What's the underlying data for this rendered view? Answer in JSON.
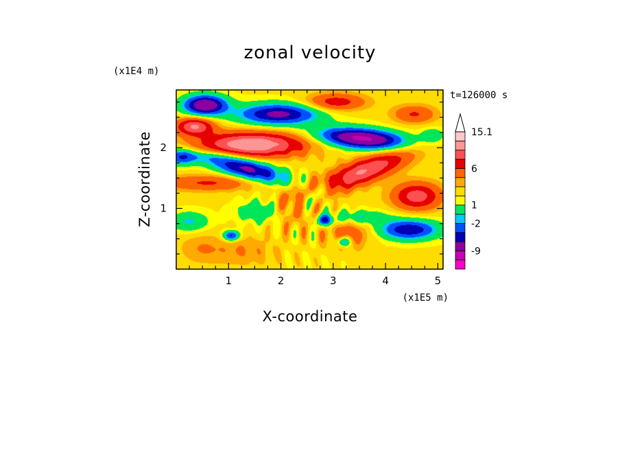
{
  "chart_data": {
    "type": "heatmap",
    "title": "zonal velocity",
    "xlabel": "X-coordinate",
    "ylabel": "Z-coordinate",
    "x_unit_label": "(x1E5 m)",
    "y_unit_label": "(x1E4 m)",
    "time_label": "t=126000 s",
    "xlim": [
      0,
      5.1
    ],
    "ylim": [
      0,
      2.95
    ],
    "x_ticks": [
      1,
      2,
      3,
      4,
      5
    ],
    "y_ticks": [
      1,
      2
    ],
    "x_tick_labels": [
      "1",
      "2",
      "3",
      "4",
      "5"
    ],
    "y_tick_labels": [
      "1",
      "2"
    ],
    "colorbar": {
      "labels": [
        "15.1",
        "6",
        "1",
        "-2",
        "-9"
      ],
      "levels": [
        -15,
        -12,
        -9,
        -6,
        -4,
        -2,
        -1,
        1,
        2,
        3,
        4,
        6,
        8,
        10,
        12.5,
        15.1
      ],
      "colors": [
        "#ff00c8",
        "#c400b0",
        "#8c00a0",
        "#0000b4",
        "#0050ff",
        "#00c8ff",
        "#00e65a",
        "#ffff00",
        "#ffdc00",
        "#ffaa00",
        "#ff6400",
        "#e60000",
        "#ff5050",
        "#ff9696",
        "#ffc8c8"
      ],
      "extend": "max"
    },
    "features": [
      {
        "x": 0.55,
        "z": 2.7,
        "rx": 0.4,
        "rz": 0.16,
        "amp": -11,
        "angle": 0
      },
      {
        "x": 1.95,
        "z": 2.55,
        "rx": 0.75,
        "rz": 0.17,
        "amp": -9,
        "angle": 0
      },
      {
        "x": 3.55,
        "z": 2.15,
        "rx": 0.8,
        "rz": 0.16,
        "amp": -12,
        "angle": -4
      },
      {
        "x": 1.35,
        "z": 1.65,
        "rx": 0.75,
        "rz": 0.16,
        "amp": -9,
        "angle": -12
      },
      {
        "x": 0.1,
        "z": 1.85,
        "rx": 0.25,
        "rz": 0.14,
        "amp": -5,
        "angle": 0
      },
      {
        "x": 0.35,
        "z": 2.35,
        "rx": 0.35,
        "rz": 0.14,
        "amp": 8,
        "angle": 0
      },
      {
        "x": 1.45,
        "z": 2.05,
        "rx": 1.0,
        "rz": 0.2,
        "amp": 10,
        "angle": 0
      },
      {
        "x": 0.6,
        "z": 1.42,
        "rx": 0.9,
        "rz": 0.13,
        "amp": 4,
        "angle": 0
      },
      {
        "x": 3.55,
        "z": 1.6,
        "rx": 0.95,
        "rz": 0.2,
        "amp": 8,
        "angle": 18
      },
      {
        "x": 4.6,
        "z": 1.2,
        "rx": 0.45,
        "rz": 0.22,
        "amp": 7,
        "angle": 0
      },
      {
        "x": 3.05,
        "z": 2.75,
        "rx": 0.55,
        "rz": 0.14,
        "amp": 5,
        "angle": 0
      },
      {
        "x": 4.55,
        "z": 2.55,
        "rx": 0.4,
        "rz": 0.15,
        "amp": 4,
        "angle": 0
      },
      {
        "x": 4.9,
        "z": 2.2,
        "rx": 0.22,
        "rz": 0.12,
        "amp": -3,
        "angle": 0
      },
      {
        "x": 4.45,
        "z": 0.65,
        "rx": 0.55,
        "rz": 0.16,
        "amp": -8,
        "angle": 0
      },
      {
        "x": 3.5,
        "z": 0.85,
        "rx": 0.55,
        "rz": 0.12,
        "amp": -3.5,
        "angle": 0
      },
      {
        "x": 3.3,
        "z": 0.6,
        "rx": 0.45,
        "rz": 0.25,
        "amp": 3,
        "angle": 0
      },
      {
        "x": 2.85,
        "z": 0.8,
        "rx": 0.14,
        "rz": 0.09,
        "amp": -7,
        "angle": 0
      },
      {
        "x": 3.2,
        "z": 0.45,
        "rx": 0.12,
        "rz": 0.08,
        "amp": -6,
        "angle": 0
      },
      {
        "x": 1.6,
        "z": 0.95,
        "rx": 0.45,
        "rz": 0.18,
        "amp": -3,
        "angle": 0
      },
      {
        "x": 1.05,
        "z": 0.55,
        "rx": 0.15,
        "rz": 0.08,
        "amp": -7,
        "angle": 0
      },
      {
        "x": 0.25,
        "z": 0.78,
        "rx": 0.35,
        "rz": 0.16,
        "amp": -3.5,
        "angle": 0
      },
      {
        "x": 1.25,
        "z": 0.3,
        "rx": 0.65,
        "rz": 0.25,
        "amp": 1.8,
        "angle": 0
      },
      {
        "x": 0.45,
        "z": 0.35,
        "rx": 0.4,
        "rz": 0.25,
        "amp": 1.5,
        "angle": 0
      },
      {
        "x": 2.7,
        "z": 1.25,
        "rx": 0.45,
        "rz": 0.12,
        "amp": -3,
        "angle": 30
      },
      {
        "x": 2.2,
        "z": 1.0,
        "rx": 0.35,
        "rz": 0.3,
        "amp": 2.5,
        "angle": 0
      },
      {
        "x": 0.45,
        "z": 1.85,
        "rx": 0.6,
        "rz": 0.1,
        "amp": -2.5,
        "angle": 0
      }
    ],
    "background_level": 2.2,
    "noise": [
      {
        "x": 2.45,
        "z": 0.9,
        "rx": 0.9,
        "rz": 0.9,
        "amp": 2.2,
        "kx": 18,
        "kz": 2.2
      }
    ]
  }
}
